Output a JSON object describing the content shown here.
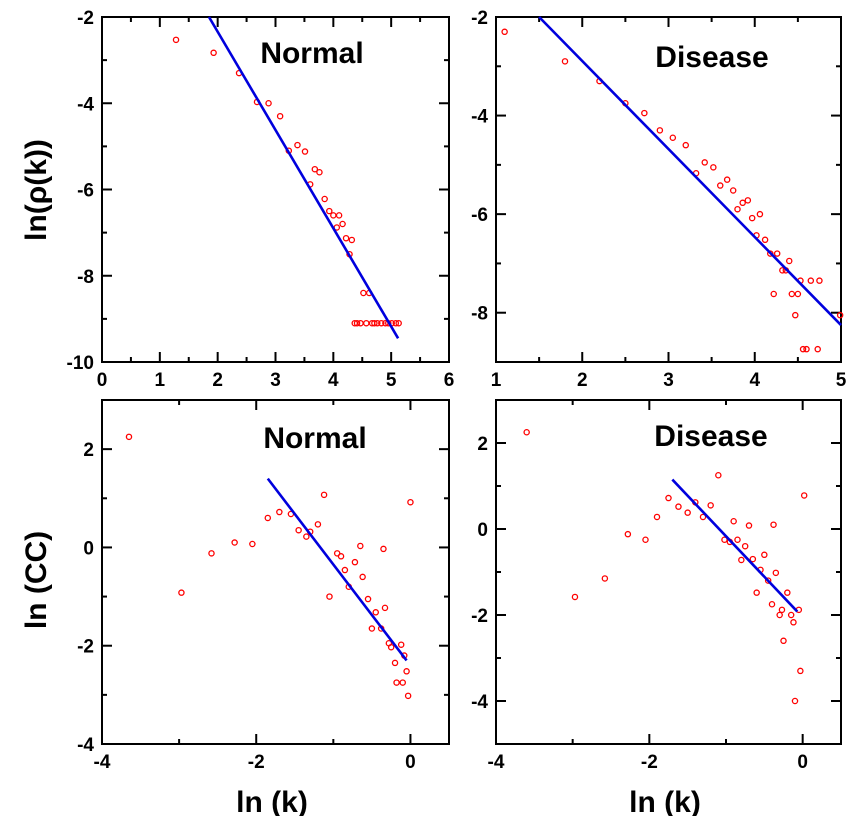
{
  "colors": {
    "points": "#ff0000",
    "fit": "#0000dd",
    "axis": "#000000"
  },
  "chart_data": [
    {
      "type": "scatter",
      "title": "Normal",
      "ylabel": "ln(ρ(k))",
      "xlabel": "",
      "xlim": [
        0,
        6
      ],
      "ylim": [
        -10,
        -2
      ],
      "xticks": [
        0,
        1,
        2,
        3,
        4,
        5,
        6
      ],
      "yticks": [
        -10,
        -8,
        -6,
        -4,
        -2
      ],
      "grid": false,
      "points": [
        [
          1.28,
          -2.53
        ],
        [
          1.93,
          -2.83
        ],
        [
          2.37,
          -3.3
        ],
        [
          2.68,
          -3.97
        ],
        [
          2.88,
          -4.0
        ],
        [
          3.08,
          -4.3
        ],
        [
          3.23,
          -5.1
        ],
        [
          3.38,
          -4.97
        ],
        [
          3.51,
          -5.12
        ],
        [
          3.6,
          -5.88
        ],
        [
          3.68,
          -5.53
        ],
        [
          3.76,
          -5.6
        ],
        [
          3.85,
          -6.22
        ],
        [
          3.93,
          -6.5
        ],
        [
          4.0,
          -6.6
        ],
        [
          4.06,
          -6.88
        ],
        [
          4.1,
          -6.6
        ],
        [
          4.16,
          -6.8
        ],
        [
          4.22,
          -7.13
        ],
        [
          4.28,
          -7.5
        ],
        [
          4.32,
          -7.17
        ],
        [
          4.37,
          -9.1
        ],
        [
          4.41,
          -9.1
        ],
        [
          4.47,
          -9.1
        ],
        [
          4.52,
          -8.4
        ],
        [
          4.57,
          -9.1
        ],
        [
          4.62,
          -8.4
        ],
        [
          4.67,
          -9.1
        ],
        [
          4.71,
          -9.1
        ],
        [
          4.76,
          -9.1
        ],
        [
          4.83,
          -9.1
        ],
        [
          4.9,
          -9.1
        ],
        [
          4.95,
          -9.1
        ],
        [
          5.01,
          -9.1
        ],
        [
          5.08,
          -9.1
        ],
        [
          5.13,
          -9.1
        ]
      ],
      "fit": [
        [
          1.85,
          -2.0
        ],
        [
          5.12,
          -9.45
        ]
      ]
    },
    {
      "type": "scatter",
      "title": "Disease",
      "xlabel": "",
      "ylabel": "",
      "xlim": [
        1,
        5
      ],
      "ylim": [
        -9,
        -2
      ],
      "xticks": [
        1,
        2,
        3,
        4,
        5
      ],
      "yticks": [
        -8,
        -6,
        -4,
        -2
      ],
      "grid": false,
      "points": [
        [
          1.1,
          -2.3
        ],
        [
          1.8,
          -2.9
        ],
        [
          2.2,
          -3.3
        ],
        [
          2.5,
          -3.75
        ],
        [
          2.72,
          -3.95
        ],
        [
          2.9,
          -4.3
        ],
        [
          3.05,
          -4.45
        ],
        [
          3.2,
          -4.6
        ],
        [
          3.32,
          -5.17
        ],
        [
          3.42,
          -4.95
        ],
        [
          3.52,
          -5.05
        ],
        [
          3.6,
          -5.42
        ],
        [
          3.68,
          -5.3
        ],
        [
          3.75,
          -5.52
        ],
        [
          3.8,
          -5.9
        ],
        [
          3.86,
          -5.77
        ],
        [
          3.92,
          -5.72
        ],
        [
          3.97,
          -6.08
        ],
        [
          4.02,
          -6.43
        ],
        [
          4.06,
          -6.0
        ],
        [
          4.12,
          -6.52
        ],
        [
          4.18,
          -6.8
        ],
        [
          4.22,
          -7.62
        ],
        [
          4.26,
          -6.8
        ],
        [
          4.32,
          -7.14
        ],
        [
          4.36,
          -7.14
        ],
        [
          4.4,
          -6.95
        ],
        [
          4.43,
          -7.62
        ],
        [
          4.47,
          -8.05
        ],
        [
          4.5,
          -7.62
        ],
        [
          4.53,
          -7.35
        ],
        [
          4.56,
          -8.74
        ],
        [
          4.6,
          -8.74
        ],
        [
          4.65,
          -7.35
        ],
        [
          4.73,
          -8.74
        ],
        [
          4.75,
          -7.35
        ],
        [
          4.99,
          -8.05
        ]
      ],
      "fit": [
        [
          1.5,
          -2.0
        ],
        [
          5.0,
          -8.25
        ]
      ]
    },
    {
      "type": "scatter",
      "title": "Normal",
      "ylabel": "ln (CC)",
      "xlabel": "ln (k)",
      "xlim": [
        -4,
        0.5
      ],
      "ylim": [
        -4,
        3
      ],
      "xticks": [
        -4,
        -2,
        0
      ],
      "yticks": [
        -4,
        -2,
        0,
        2
      ],
      "grid": false,
      "points": [
        [
          -3.65,
          2.25
        ],
        [
          -2.97,
          -0.92
        ],
        [
          -2.58,
          -0.12
        ],
        [
          -2.28,
          0.1
        ],
        [
          -2.05,
          0.07
        ],
        [
          -1.85,
          0.6
        ],
        [
          -1.7,
          0.72
        ],
        [
          -1.55,
          0.68
        ],
        [
          -1.45,
          0.35
        ],
        [
          -1.35,
          0.22
        ],
        [
          -1.3,
          0.32
        ],
        [
          -1.2,
          0.47
        ],
        [
          -1.12,
          1.07
        ],
        [
          -1.05,
          -1.0
        ],
        [
          -0.95,
          -0.12
        ],
        [
          -0.9,
          -0.18
        ],
        [
          -0.85,
          -0.46
        ],
        [
          -0.8,
          -0.8
        ],
        [
          -0.72,
          -0.3
        ],
        [
          -0.65,
          0.03
        ],
        [
          -0.62,
          -0.6
        ],
        [
          -0.55,
          -1.05
        ],
        [
          -0.5,
          -1.65
        ],
        [
          -0.45,
          -1.32
        ],
        [
          -0.38,
          -1.65
        ],
        [
          -0.35,
          -0.03
        ],
        [
          -0.33,
          -1.23
        ],
        [
          -0.28,
          -1.95
        ],
        [
          -0.25,
          -2.03
        ],
        [
          -0.2,
          -2.35
        ],
        [
          -0.18,
          -2.75
        ],
        [
          -0.12,
          -1.98
        ],
        [
          -0.1,
          -2.75
        ],
        [
          -0.08,
          -2.2
        ],
        [
          -0.05,
          -2.52
        ],
        [
          -0.03,
          -3.02
        ],
        [
          0.0,
          0.92
        ]
      ],
      "fit": [
        [
          -1.85,
          1.4
        ],
        [
          -0.05,
          -2.3
        ]
      ]
    },
    {
      "type": "scatter",
      "title": "Disease",
      "xlabel": "ln (k)",
      "ylabel": "",
      "xlim": [
        -4,
        0.5
      ],
      "ylim": [
        -5,
        3
      ],
      "xticks": [
        -4,
        -2,
        0
      ],
      "yticks": [
        -4,
        -2,
        0,
        2
      ],
      "grid": false,
      "points": [
        [
          -3.6,
          2.25
        ],
        [
          -2.97,
          -1.58
        ],
        [
          -2.58,
          -1.15
        ],
        [
          -2.28,
          -0.12
        ],
        [
          -2.05,
          -0.25
        ],
        [
          -1.9,
          0.28
        ],
        [
          -1.75,
          0.72
        ],
        [
          -1.62,
          0.52
        ],
        [
          -1.5,
          0.38
        ],
        [
          -1.4,
          0.62
        ],
        [
          -1.3,
          0.28
        ],
        [
          -1.2,
          0.55
        ],
        [
          -1.1,
          1.25
        ],
        [
          -1.02,
          -0.25
        ],
        [
          -0.95,
          -0.3
        ],
        [
          -0.9,
          0.18
        ],
        [
          -0.85,
          -0.25
        ],
        [
          -0.8,
          -0.72
        ],
        [
          -0.75,
          -0.4
        ],
        [
          -0.7,
          0.08
        ],
        [
          -0.65,
          -0.7
        ],
        [
          -0.6,
          -1.48
        ],
        [
          -0.55,
          -0.95
        ],
        [
          -0.5,
          -0.6
        ],
        [
          -0.45,
          -1.2
        ],
        [
          -0.4,
          -1.75
        ],
        [
          -0.38,
          0.1
        ],
        [
          -0.35,
          -1.02
        ],
        [
          -0.3,
          -2.0
        ],
        [
          -0.27,
          -1.88
        ],
        [
          -0.25,
          -2.6
        ],
        [
          -0.2,
          -1.48
        ],
        [
          -0.15,
          -2.0
        ],
        [
          -0.12,
          -2.17
        ],
        [
          -0.1,
          -4.0
        ],
        [
          -0.05,
          -1.88
        ],
        [
          -0.03,
          -3.3
        ],
        [
          0.02,
          0.78
        ]
      ],
      "fit": [
        [
          -1.7,
          1.15
        ],
        [
          -0.07,
          -1.92
        ]
      ]
    }
  ]
}
